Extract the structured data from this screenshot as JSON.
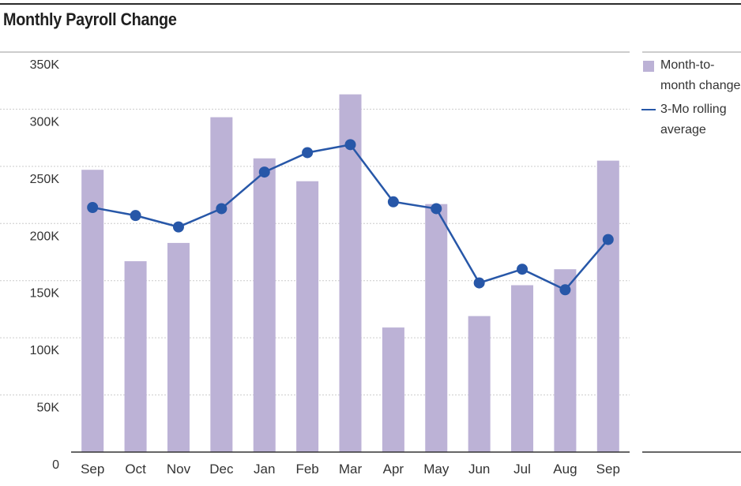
{
  "title": "Monthly Payroll Change",
  "colors": {
    "bar": "#bcb2d6",
    "line": "#2757a8",
    "grid": "#cccccc",
    "axis": "#333333",
    "text": "#333333"
  },
  "chart_data": {
    "type": "bar",
    "categories": [
      "Sep",
      "Oct",
      "Nov",
      "Dec",
      "Jan",
      "Feb",
      "Mar",
      "Apr",
      "May",
      "Jun",
      "Jul",
      "Aug",
      "Sep"
    ],
    "series": [
      {
        "name": "Month-to-month change",
        "type": "bar",
        "values": [
          247000,
          167000,
          183000,
          293000,
          257000,
          237000,
          313000,
          109000,
          217000,
          119000,
          146000,
          160000,
          255000
        ]
      },
      {
        "name": "3-Mo rolling average",
        "type": "line",
        "values": [
          214000,
          207000,
          197000,
          213000,
          245000,
          262000,
          269000,
          219000,
          213000,
          148000,
          160000,
          142000,
          186000
        ]
      }
    ],
    "yticks": [
      "0",
      "50K",
      "100K",
      "150K",
      "200K",
      "250K",
      "300K",
      "350K"
    ],
    "ylim": [
      0,
      350000
    ],
    "grid": true,
    "legend_position": "right"
  },
  "legend": {
    "bar_label": "Month-to-month change",
    "line_label": "3-Mo rolling average"
  }
}
